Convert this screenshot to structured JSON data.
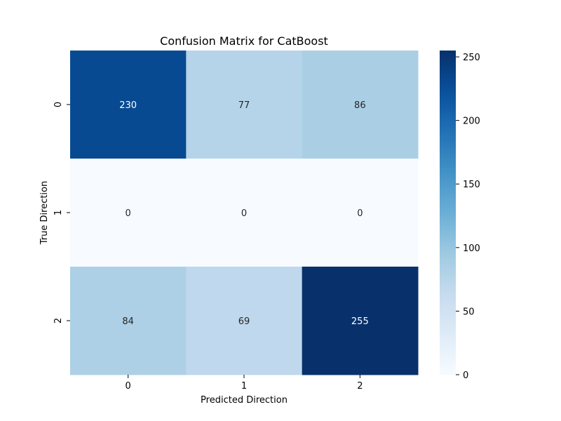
{
  "chart_data": {
    "type": "heatmap",
    "title": "Confusion Matrix for CatBoost",
    "xlabel": "Predicted Direction",
    "ylabel": "True Direction",
    "x_categories": [
      "0",
      "1",
      "2"
    ],
    "y_categories": [
      "0",
      "1",
      "2"
    ],
    "matrix": [
      [
        230,
        77,
        86
      ],
      [
        0,
        0,
        0
      ],
      [
        84,
        69,
        255
      ]
    ],
    "colormap": "Blues",
    "colorbar": {
      "min": 0,
      "max": 255,
      "ticks": [
        0,
        50,
        100,
        150,
        200,
        250
      ]
    },
    "annotations": true
  }
}
